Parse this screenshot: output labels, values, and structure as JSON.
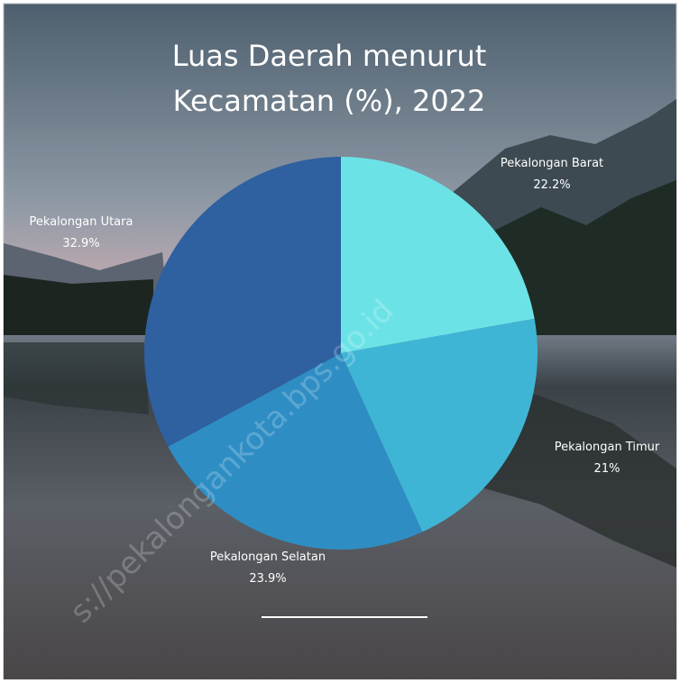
{
  "chart_data": {
    "type": "pie",
    "title": [
      "Luas Daerah menurut",
      "Kecamatan (%), 2022"
    ],
    "categories": [
      "Pekalongan Barat",
      "Pekalongan Timur",
      "Pekalongan Selatan",
      "Pekalongan Utara"
    ],
    "values": [
      22.2,
      21,
      23.9,
      32.9
    ],
    "value_labels": [
      "22.2%",
      "21%",
      "23.9%",
      "32.9%"
    ],
    "colors": [
      "#6be3e6",
      "#3fb5d6",
      "#2e8ec4",
      "#2f609f"
    ],
    "watermark": "s://pekalongankota.bps.go.id"
  }
}
